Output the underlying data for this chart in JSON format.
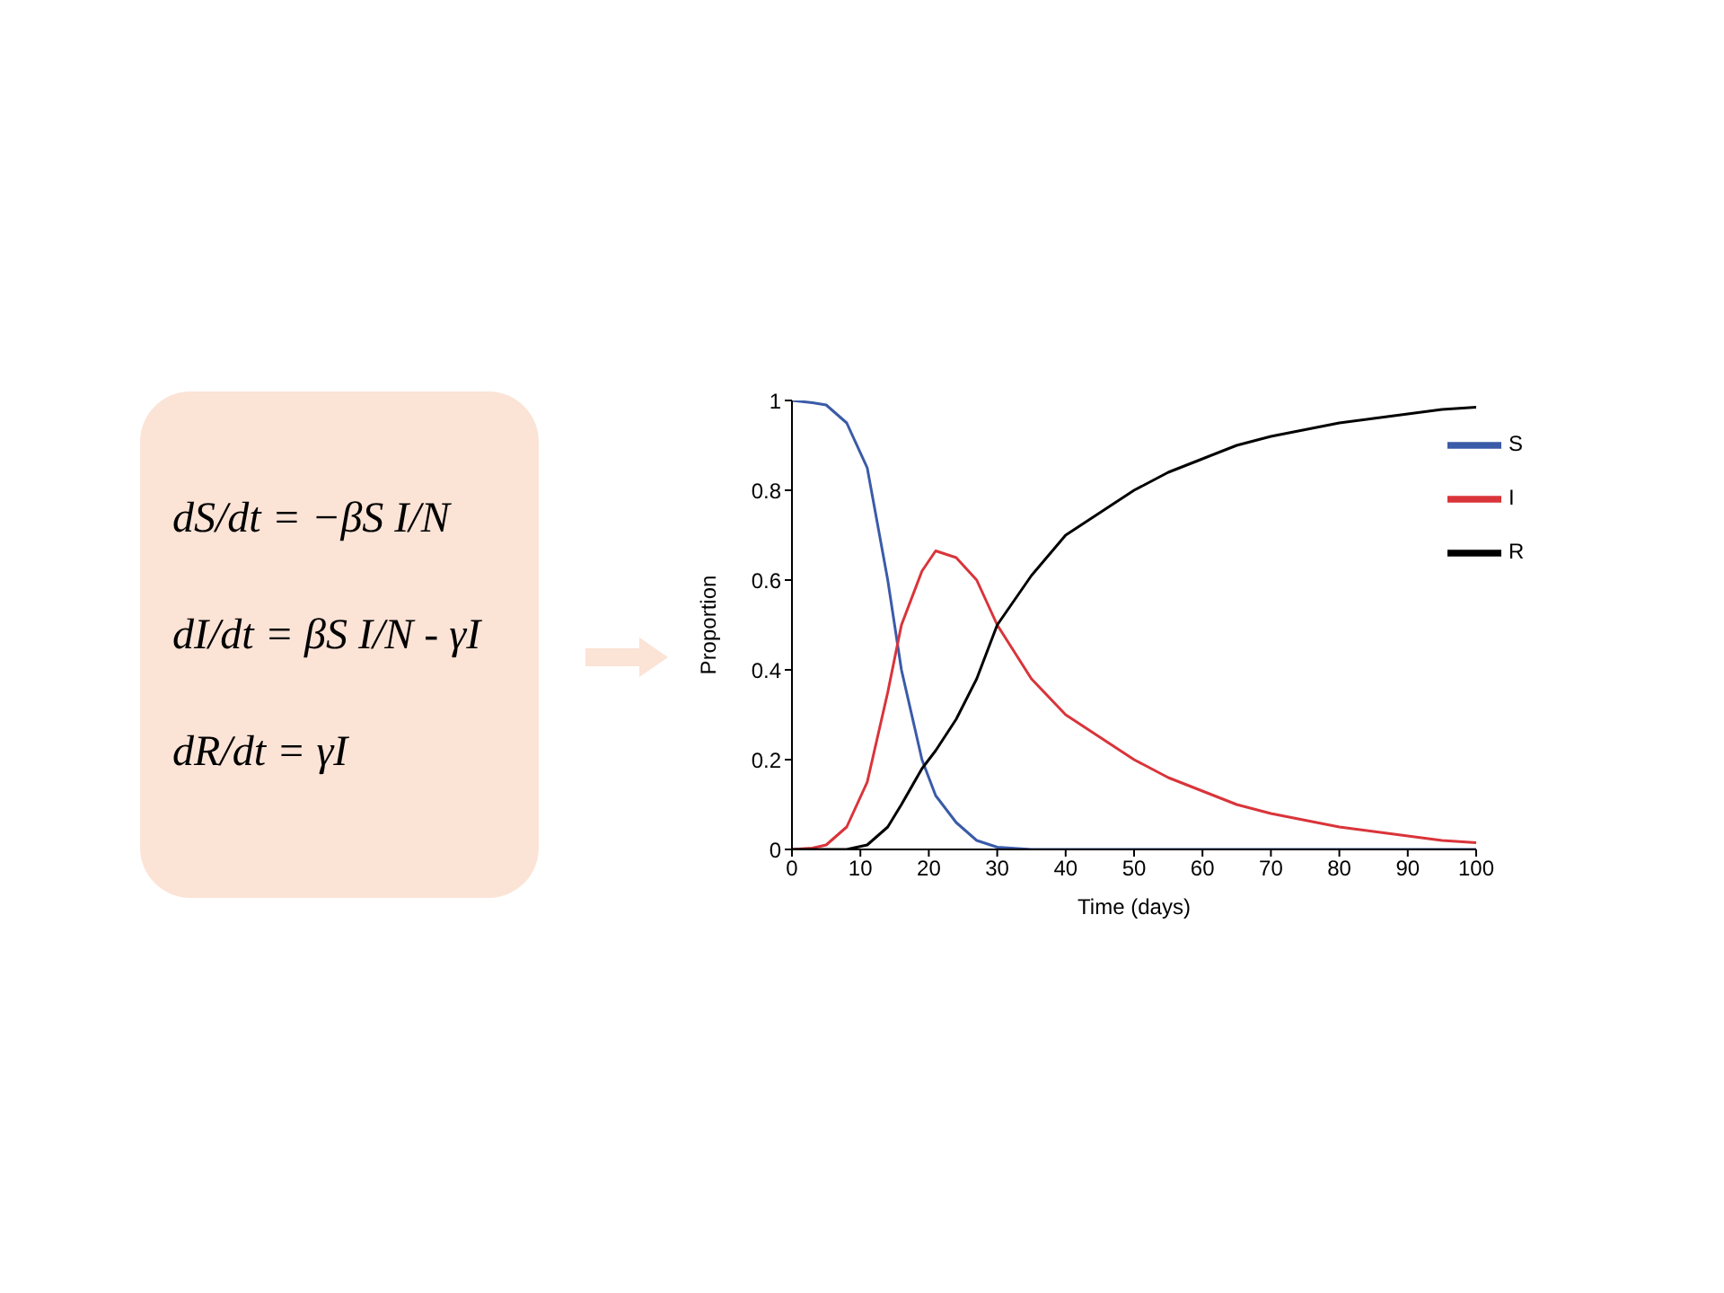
{
  "chart_data": [
    {
      "type": "other",
      "annotations": [
        "dS/dt = −βS I/N",
        "dI/dt = βS I/N - γI",
        "dR/dt = γI"
      ]
    },
    {
      "type": "line",
      "xlabel": "Time (days)",
      "ylabel": "Proportion",
      "x": [
        0,
        3,
        5,
        8,
        11,
        14,
        16,
        19,
        21,
        24,
        27,
        30,
        35,
        40,
        45,
        50,
        55,
        60,
        65,
        70,
        75,
        80,
        85,
        90,
        95,
        100
      ],
      "xlim": [
        0,
        100
      ],
      "xticks": [
        0,
        10,
        20,
        30,
        40,
        50,
        60,
        70,
        80,
        90,
        100
      ],
      "ylim": [
        0,
        1
      ],
      "yticks": [
        0,
        0.2,
        0.4,
        0.6,
        0.8,
        1
      ],
      "grid": false,
      "legend": "top right",
      "marker": "none",
      "line_style": "solid",
      "series": [
        {
          "name": "S",
          "color": "#3a5ba8",
          "values": [
            1,
            0.995,
            0.99,
            0.95,
            0.85,
            0.6,
            0.4,
            0.2,
            0.12,
            0.06,
            0.02,
            0.005,
            0,
            0,
            0,
            0,
            0,
            0,
            0,
            0,
            0,
            0,
            0,
            0,
            0,
            0
          ]
        },
        {
          "name": "I",
          "color": "#d9343a",
          "values": [
            0,
            0.003,
            0.01,
            0.05,
            0.15,
            0.35,
            0.5,
            0.62,
            0.665,
            0.65,
            0.6,
            0.5,
            0.38,
            0.3,
            0.25,
            0.2,
            0.16,
            0.13,
            0.1,
            0.08,
            0.065,
            0.05,
            0.04,
            0.03,
            0.02,
            0.015
          ]
        },
        {
          "name": "R",
          "color": "#000000",
          "values": [
            0,
            0,
            0,
            0,
            0.01,
            0.05,
            0.1,
            0.18,
            0.22,
            0.29,
            0.38,
            0.5,
            0.61,
            0.7,
            0.75,
            0.8,
            0.84,
            0.87,
            0.9,
            0.92,
            0.935,
            0.95,
            0.96,
            0.97,
            0.98,
            0.985
          ]
        }
      ]
    }
  ]
}
